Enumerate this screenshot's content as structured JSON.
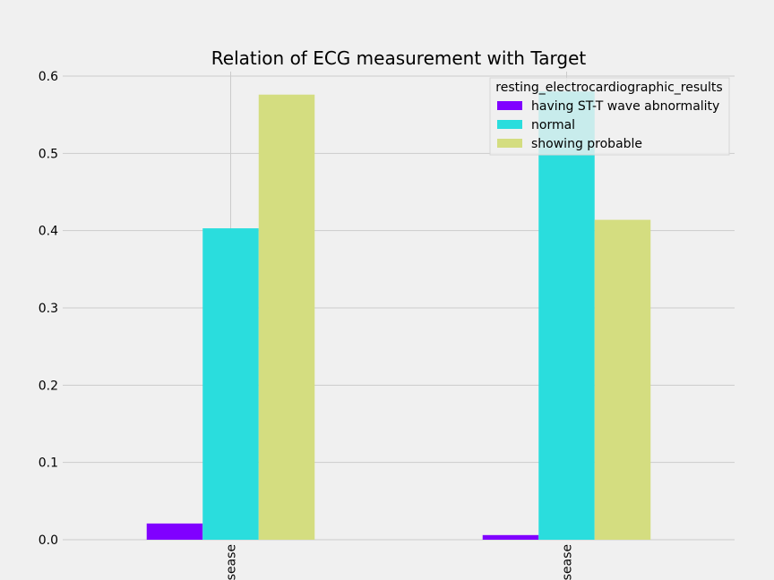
{
  "chart_data": {
    "type": "bar",
    "title": "Relation of ECG measurement with Target",
    "xlabel": "",
    "ylabel": "",
    "categories": [
      "sease",
      "sease"
    ],
    "series": [
      {
        "name": "having ST-T wave abnormality",
        "color": "#8000ff",
        "values": [
          0.021,
          0.006
        ]
      },
      {
        "name": "normal",
        "color": "#2adddd",
        "values": [
          0.403,
          0.58
        ]
      },
      {
        "name": "showing probable",
        "color": "#d4dd80",
        "values": [
          0.576,
          0.414
        ]
      }
    ],
    "ylim": [
      0,
      0.6
    ],
    "yticks": [
      "0.0",
      "0.1",
      "0.2",
      "0.3",
      "0.4",
      "0.5",
      "0.6"
    ],
    "grid": true,
    "legend": {
      "title": "resting_electrocardiographic_results",
      "placement": "top-right"
    },
    "background": "#f0f0f0",
    "grid_color": "#cbcbcb"
  }
}
